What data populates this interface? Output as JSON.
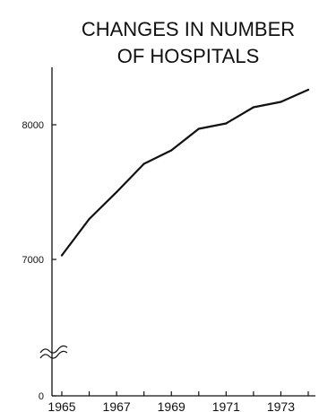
{
  "chart_data": {
    "type": "line",
    "title_lines": [
      "CHANGES IN NUMBER",
      "OF HOSPITALS"
    ],
    "xlabel": "",
    "ylabel": "",
    "x": [
      1965,
      1966,
      1967,
      1968,
      1969,
      1970,
      1971,
      1972,
      1973,
      1974
    ],
    "series": [
      {
        "values": [
          7030,
          7300,
          7500,
          7710,
          7810,
          7970,
          8010,
          8130,
          8170,
          8260
        ]
      }
    ],
    "y_ticks": [
      {
        "value": 0,
        "label": "0"
      },
      {
        "value": 7000,
        "label": "7000"
      },
      {
        "value": 8000,
        "label": "8000"
      }
    ],
    "x_ticks": [
      {
        "value": 1965,
        "label": "1965"
      },
      {
        "value": 1967,
        "label": "1967"
      },
      {
        "value": 1969,
        "label": "1969"
      },
      {
        "value": 1971,
        "label": "1971"
      },
      {
        "value": 1973,
        "label": "1973"
      }
    ],
    "ylim": [
      6500,
      8400
    ],
    "y_axis_break": true,
    "grid": false,
    "legend": "none",
    "line_color": "#111111"
  }
}
